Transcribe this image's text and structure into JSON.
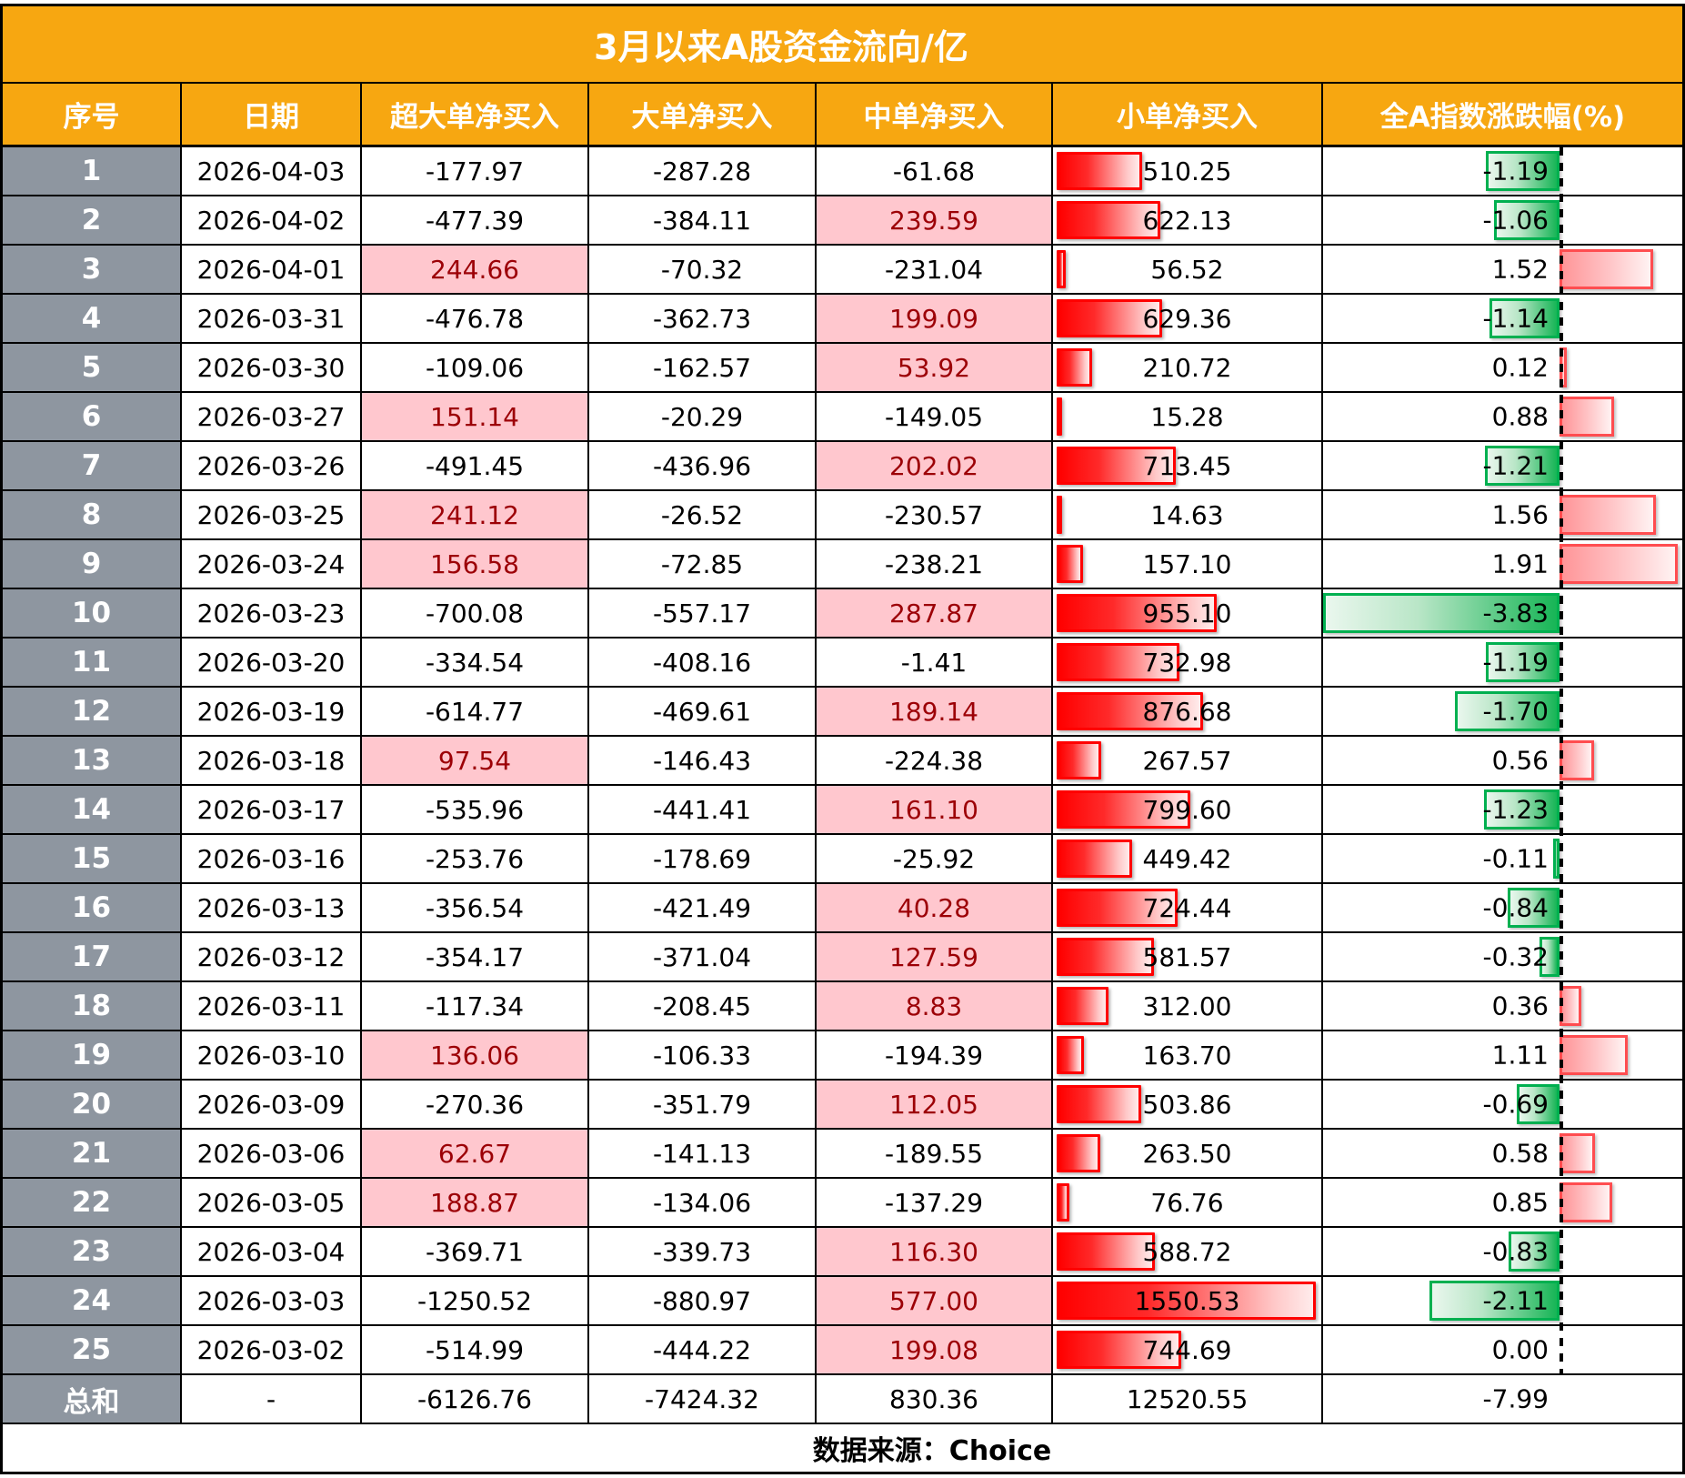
{
  "source_note": "数据来源：Choice",
  "colors": {
    "header_orange": "#F7A711",
    "index_gray": "#8E96A0",
    "pink_fill": "#FFC7CE",
    "pink_text": "#9C0006",
    "bar_red": "#FF0000",
    "chg_red_border": "#FF4D50",
    "green_border": "#00B050",
    "green_fill": "#17B556"
  },
  "chart_data": {
    "type": "table",
    "title": "3月以来A股资金流向/亿",
    "columns": [
      "序号",
      "日期",
      "超大单净买入",
      "大单净买入",
      "中单净买入",
      "小单净买入",
      "全A指数涨跌幅(%)"
    ],
    "layout_hints": {
      "small_net_column_databar": {
        "color": "red",
        "min": 0,
        "max": 1550.53
      },
      "index_change_column_databar": {
        "negative_color": "green",
        "positive_color": "red",
        "axis": "dashed vertical line",
        "min": -3.83,
        "max": 1.91
      },
      "positive_flow_cells": "light red fill with dark red text"
    },
    "rows": [
      {
        "no": 1,
        "date": "2026-04-03",
        "xlarge": -177.97,
        "large": -287.28,
        "medium": -61.68,
        "small": 510.25,
        "change": -1.19
      },
      {
        "no": 2,
        "date": "2026-04-02",
        "xlarge": -477.39,
        "large": -384.11,
        "medium": 239.59,
        "small": 622.13,
        "change": -1.06
      },
      {
        "no": 3,
        "date": "2026-04-01",
        "xlarge": 244.66,
        "large": -70.32,
        "medium": -231.04,
        "small": 56.52,
        "change": 1.52
      },
      {
        "no": 4,
        "date": "2026-03-31",
        "xlarge": -476.78,
        "large": -362.73,
        "medium": 199.09,
        "small": 629.36,
        "change": -1.14
      },
      {
        "no": 5,
        "date": "2026-03-30",
        "xlarge": -109.06,
        "large": -162.57,
        "medium": 53.92,
        "small": 210.72,
        "change": 0.12
      },
      {
        "no": 6,
        "date": "2026-03-27",
        "xlarge": 151.14,
        "large": -20.29,
        "medium": -149.05,
        "small": 15.28,
        "change": 0.88
      },
      {
        "no": 7,
        "date": "2026-03-26",
        "xlarge": -491.45,
        "large": -436.96,
        "medium": 202.02,
        "small": 713.45,
        "change": -1.21
      },
      {
        "no": 8,
        "date": "2026-03-25",
        "xlarge": 241.12,
        "large": -26.52,
        "medium": -230.57,
        "small": 14.63,
        "change": 1.56
      },
      {
        "no": 9,
        "date": "2026-03-24",
        "xlarge": 156.58,
        "large": -72.85,
        "medium": -238.21,
        "small": 157.1,
        "change": 1.91
      },
      {
        "no": 10,
        "date": "2026-03-23",
        "xlarge": -700.08,
        "large": -557.17,
        "medium": 287.87,
        "small": 955.1,
        "change": -3.83
      },
      {
        "no": 11,
        "date": "2026-03-20",
        "xlarge": -334.54,
        "large": -408.16,
        "medium": -1.41,
        "small": 732.98,
        "change": -1.19
      },
      {
        "no": 12,
        "date": "2026-03-19",
        "xlarge": -614.77,
        "large": -469.61,
        "medium": 189.14,
        "small": 876.68,
        "change": -1.7
      },
      {
        "no": 13,
        "date": "2026-03-18",
        "xlarge": 97.54,
        "large": -146.43,
        "medium": -224.38,
        "small": 267.57,
        "change": 0.56
      },
      {
        "no": 14,
        "date": "2026-03-17",
        "xlarge": -535.96,
        "large": -441.41,
        "medium": 161.1,
        "small": 799.6,
        "change": -1.23
      },
      {
        "no": 15,
        "date": "2026-03-16",
        "xlarge": -253.76,
        "large": -178.69,
        "medium": -25.92,
        "small": 449.42,
        "change": -0.11
      },
      {
        "no": 16,
        "date": "2026-03-13",
        "xlarge": -356.54,
        "large": -421.49,
        "medium": 40.28,
        "small": 724.44,
        "change": -0.84
      },
      {
        "no": 17,
        "date": "2026-03-12",
        "xlarge": -354.17,
        "large": -371.04,
        "medium": 127.59,
        "small": 581.57,
        "change": -0.32
      },
      {
        "no": 18,
        "date": "2026-03-11",
        "xlarge": -117.34,
        "large": -208.45,
        "medium": 8.83,
        "small": 312.0,
        "change": 0.36
      },
      {
        "no": 19,
        "date": "2026-03-10",
        "xlarge": 136.06,
        "large": -106.33,
        "medium": -194.39,
        "small": 163.7,
        "change": 1.11
      },
      {
        "no": 20,
        "date": "2026-03-09",
        "xlarge": -270.36,
        "large": -351.79,
        "medium": 112.05,
        "small": 503.86,
        "change": -0.69
      },
      {
        "no": 21,
        "date": "2026-03-06",
        "xlarge": 62.67,
        "large": -141.13,
        "medium": -189.55,
        "small": 263.5,
        "change": 0.58
      },
      {
        "no": 22,
        "date": "2026-03-05",
        "xlarge": 188.87,
        "large": -134.06,
        "medium": -137.29,
        "small": 76.76,
        "change": 0.85
      },
      {
        "no": 23,
        "date": "2026-03-04",
        "xlarge": -369.71,
        "large": -339.73,
        "medium": 116.3,
        "small": 588.72,
        "change": -0.83
      },
      {
        "no": 24,
        "date": "2026-03-03",
        "xlarge": -1250.52,
        "large": -880.97,
        "medium": 577.0,
        "small": 1550.53,
        "change": -2.11
      },
      {
        "no": 25,
        "date": "2026-03-02",
        "xlarge": -514.99,
        "large": -444.22,
        "medium": 199.08,
        "small": 744.69,
        "change": 0.0
      }
    ],
    "total_row": {
      "no": "总和",
      "date": "-",
      "xlarge": -6126.76,
      "large": -7424.32,
      "medium": 830.36,
      "small": 12520.55,
      "change": -7.99
    }
  }
}
